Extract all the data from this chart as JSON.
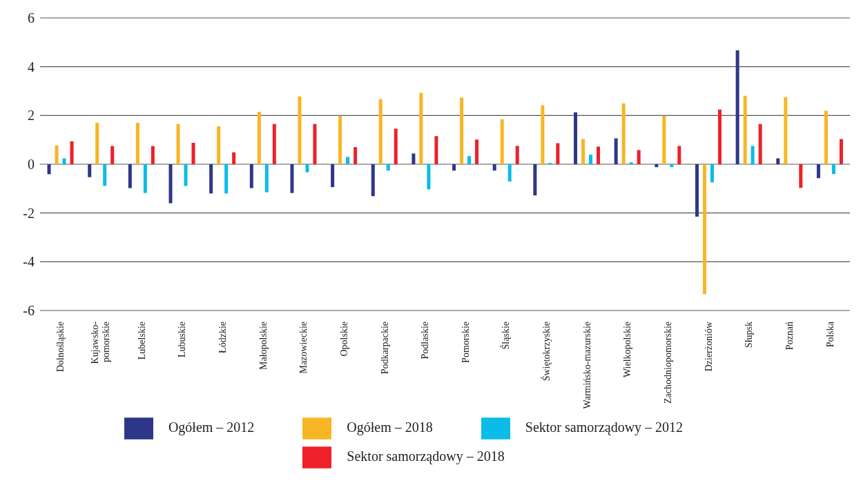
{
  "chart_data": {
    "type": "bar",
    "categories": [
      "Dolnośląskie",
      "Kujawsko-\npomorskie",
      "Lubelskie",
      "Lubuskie",
      "Łódzkie",
      "Małopolskie",
      "Mazowieckie",
      "Opolskie",
      "Podkarpackie",
      "Podlaskie",
      "Pomorskie",
      "Śląskie",
      "Świętokrzyskie",
      "Warmińsko-mazurskie",
      "Wielkopolskie",
      "Zachodniopomorskie",
      "Dzierżoniów",
      "Słupsk",
      "Poznań",
      "Polska"
    ],
    "series": [
      {
        "name": "Ogółem – 2012",
        "color": "#2e3787",
        "values": [
          -0.41,
          -0.53,
          -0.98,
          -1.6,
          -1.2,
          -0.98,
          -1.18,
          -0.94,
          -1.31,
          0.44,
          -0.26,
          -0.26,
          -1.28,
          2.13,
          1.06,
          -0.12,
          -2.15,
          4.67,
          0.24,
          -0.57
        ]
      },
      {
        "name": "Ogółem – 2018",
        "color": "#f8b624",
        "values": [
          0.77,
          1.7,
          1.7,
          1.65,
          1.56,
          2.15,
          2.78,
          1.99,
          2.67,
          2.93,
          2.73,
          1.85,
          2.42,
          1.03,
          2.5,
          1.99,
          -5.33,
          2.81,
          2.75,
          2.19
        ]
      },
      {
        "name": "Sektor samorządowy – 2012",
        "color": "#0bbce8",
        "values": [
          0.24,
          -0.89,
          -1.18,
          -0.89,
          -1.2,
          -1.15,
          -0.33,
          0.3,
          -0.26,
          -1.03,
          0.33,
          -0.71,
          0.05,
          0.39,
          0.08,
          -0.12,
          -0.74,
          0.75,
          null,
          -0.4
        ]
      },
      {
        "name": "Sektor samorządowy – 2018",
        "color": "#ee2029",
        "values": [
          0.94,
          0.74,
          0.74,
          0.88,
          0.49,
          1.65,
          1.65,
          0.7,
          1.46,
          1.15,
          1.01,
          0.75,
          0.86,
          0.72,
          0.58,
          0.75,
          2.24,
          1.65,
          -0.97,
          1.03
        ]
      }
    ],
    "ylim": [
      -6,
      6
    ],
    "yticks": [
      -6,
      -4,
      -2,
      0,
      2,
      4,
      6
    ],
    "grid": "y",
    "legend": "bottom"
  }
}
